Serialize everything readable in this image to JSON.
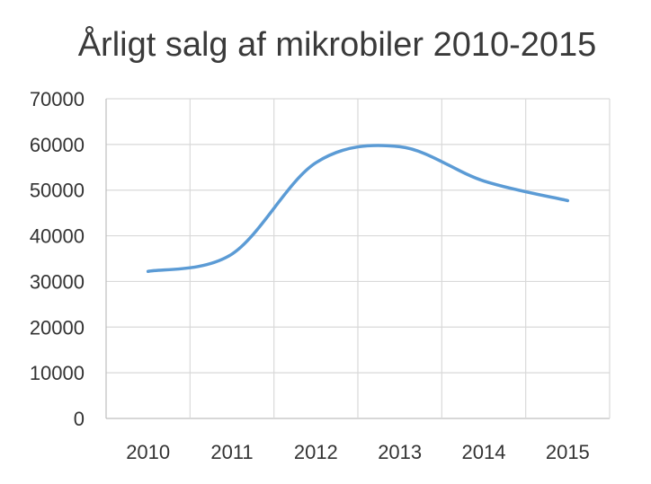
{
  "chart_data": {
    "type": "line",
    "title": "Årligt salg af mikrobiler 2010-2015",
    "xlabel": "",
    "ylabel": "",
    "categories": [
      "2010",
      "2011",
      "2012",
      "2013",
      "2014",
      "2015"
    ],
    "series": [
      {
        "values": [
          32200,
          36000,
          56000,
          59500,
          52000,
          47700
        ],
        "color": "#5b9bd5"
      }
    ],
    "ylim": [
      0,
      70000
    ],
    "yticks": [
      "0",
      "10000",
      "20000",
      "30000",
      "40000",
      "50000",
      "60000",
      "70000"
    ],
    "grid": true,
    "legend": "none"
  }
}
